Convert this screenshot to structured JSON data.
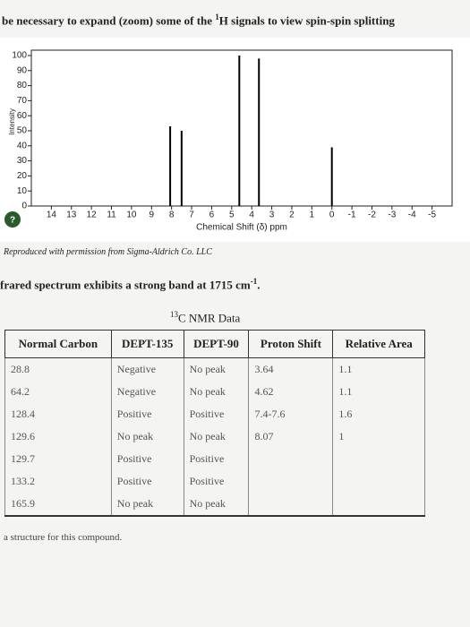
{
  "header": {
    "before": "be necessary to expand (zoom) some of the ",
    "sup": "1",
    "after": "H signals to view spin-spin splitting"
  },
  "chart_data": {
    "type": "stem",
    "x_label": "Chemical Shift (δ) ppm",
    "y_label": "Intensity",
    "help_icon": "?",
    "x": [
      8.07,
      7.5,
      4.62,
      3.64,
      0
    ],
    "values": [
      53,
      50,
      100,
      98,
      39
    ],
    "color": "#000000",
    "xlim": [
      15,
      -6
    ],
    "xticks": [
      14,
      13,
      12,
      11,
      10,
      9,
      8,
      7,
      6,
      5,
      4,
      3,
      2,
      1,
      0,
      -1,
      -2,
      -3,
      -4,
      -5
    ],
    "ylim": [
      0,
      100
    ],
    "yticks": [
      0,
      10,
      20,
      30,
      40,
      50,
      60,
      70,
      80,
      90,
      100
    ]
  },
  "caption": "Reproduced with permission from Sigma-Aldrich Co. LLC",
  "ir": {
    "before": "frared spectrum exhibits a strong band at 1715 cm",
    "sup": "-1",
    "after": "."
  },
  "table_title": {
    "sup": "13",
    "text": "C NMR Data"
  },
  "table": {
    "header": [
      "Normal Carbon",
      "DEPT-135",
      "DEPT-90",
      "Proton Shift",
      "Relative Area"
    ],
    "rows": [
      [
        "28.8",
        "Negative",
        "No peak",
        "3.64",
        "1.1"
      ],
      [
        "64.2",
        "Negative",
        "No peak",
        "4.62",
        "1.1"
      ],
      [
        "128.4",
        "Positive",
        "Positive",
        "7.4-7.6",
        "1.6"
      ],
      [
        "129.6",
        "No peak",
        "No peak",
        "8.07",
        "1"
      ],
      [
        "129.7",
        "Positive",
        "Positive"
      ],
      [
        "133.2",
        "Positive",
        "Positive"
      ],
      [
        "165.9",
        "No peak",
        "No peak"
      ]
    ]
  },
  "footer": "a structure for this compound."
}
